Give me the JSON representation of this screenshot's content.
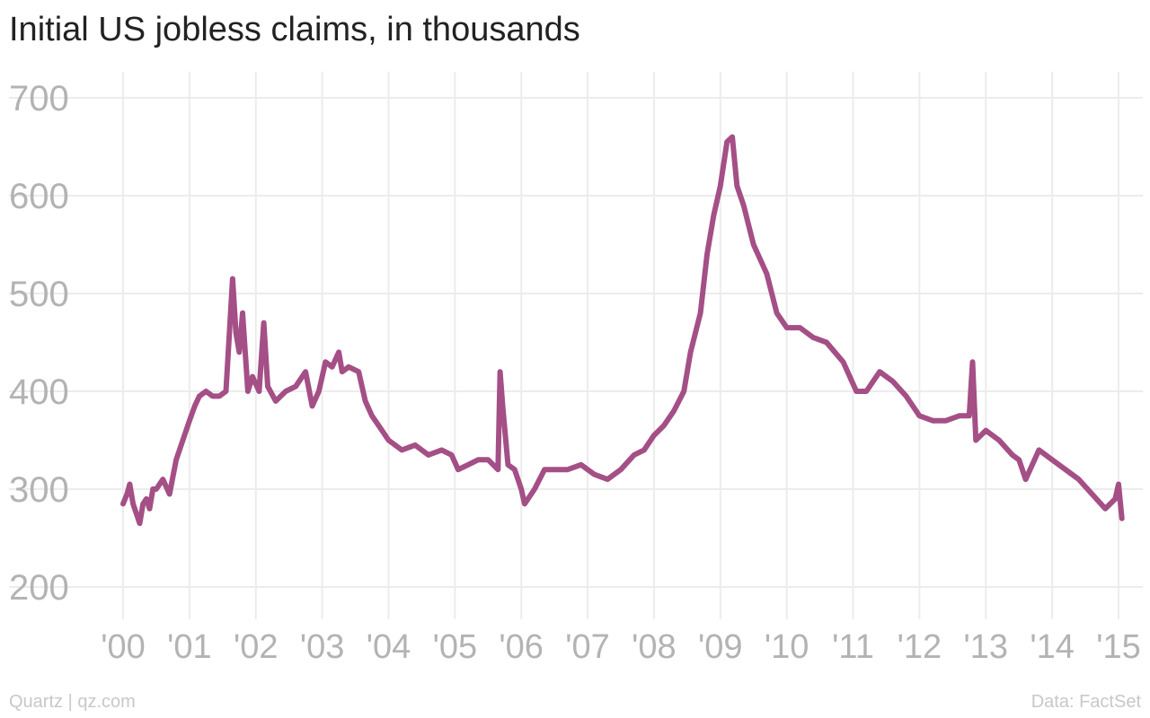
{
  "chart_data": {
    "type": "line",
    "title": "Initial US jobless claims, in thousands",
    "xlabel": "",
    "ylabel": "",
    "ylim": [
      200,
      700
    ],
    "yticks": [
      200,
      300,
      400,
      500,
      600,
      700
    ],
    "xticks": [
      "'00",
      "'01",
      "'02",
      "'03",
      "'04",
      "'05",
      "'06",
      "'07",
      "'08",
      "'09",
      "'10",
      "'11",
      "'12",
      "'13",
      "'14",
      "'15"
    ],
    "xrange": [
      2000,
      2015.1
    ],
    "grid": true,
    "legend": "none",
    "series": [
      {
        "color": "#a44f86",
        "x": [
          2000.0,
          2000.06,
          2000.1,
          2000.15,
          2000.2,
          2000.25,
          2000.3,
          2000.35,
          2000.4,
          2000.45,
          2000.5,
          2000.6,
          2000.7,
          2000.8,
          2000.9,
          2001.0,
          2001.08,
          2001.15,
          2001.25,
          2001.35,
          2001.45,
          2001.55,
          2001.65,
          2001.7,
          2001.75,
          2001.8,
          2001.88,
          2001.95,
          2002.05,
          2002.12,
          2002.18,
          2002.3,
          2002.45,
          2002.6,
          2002.75,
          2002.85,
          2002.95,
          2003.05,
          2003.15,
          2003.25,
          2003.3,
          2003.4,
          2003.55,
          2003.65,
          2003.75,
          2003.85,
          2004.0,
          2004.2,
          2004.4,
          2004.6,
          2004.8,
          2004.95,
          2005.05,
          2005.2,
          2005.35,
          2005.5,
          2005.65,
          2005.68,
          2005.72,
          2005.8,
          2005.9,
          2006.0,
          2006.05,
          2006.2,
          2006.35,
          2006.5,
          2006.7,
          2006.9,
          2007.1,
          2007.3,
          2007.5,
          2007.7,
          2007.85,
          2008.0,
          2008.15,
          2008.3,
          2008.45,
          2008.55,
          2008.7,
          2008.8,
          2008.9,
          2009.0,
          2009.1,
          2009.18,
          2009.25,
          2009.35,
          2009.5,
          2009.7,
          2009.85,
          2010.0,
          2010.2,
          2010.4,
          2010.6,
          2010.85,
          2011.05,
          2011.2,
          2011.4,
          2011.6,
          2011.8,
          2012.0,
          2012.2,
          2012.4,
          2012.6,
          2012.75,
          2012.8,
          2012.85,
          2013.0,
          2013.2,
          2013.4,
          2013.5,
          2013.6,
          2013.8,
          2014.0,
          2014.2,
          2014.4,
          2014.6,
          2014.8,
          2014.95,
          2015.0,
          2015.05
        ],
        "values": [
          285,
          295,
          305,
          285,
          275,
          265,
          285,
          290,
          280,
          300,
          300,
          310,
          295,
          330,
          350,
          370,
          385,
          395,
          400,
          395,
          395,
          400,
          515,
          460,
          440,
          480,
          400,
          415,
          400,
          470,
          405,
          390,
          400,
          405,
          420,
          385,
          400,
          430,
          425,
          440,
          420,
          425,
          420,
          390,
          375,
          365,
          350,
          340,
          345,
          335,
          340,
          335,
          320,
          325,
          330,
          330,
          320,
          420,
          385,
          325,
          320,
          300,
          285,
          300,
          320,
          320,
          320,
          325,
          315,
          310,
          320,
          335,
          340,
          355,
          365,
          380,
          400,
          440,
          480,
          540,
          580,
          610,
          655,
          660,
          610,
          590,
          550,
          520,
          480,
          465,
          465,
          455,
          450,
          430,
          400,
          400,
          420,
          410,
          395,
          375,
          370,
          370,
          375,
          375,
          430,
          350,
          360,
          350,
          335,
          330,
          310,
          340,
          330,
          320,
          310,
          295,
          280,
          290,
          305,
          270
        ]
      }
    ]
  },
  "footer": {
    "source_left": "Quartz | qz.com",
    "source_right": "Data: FactSet"
  }
}
